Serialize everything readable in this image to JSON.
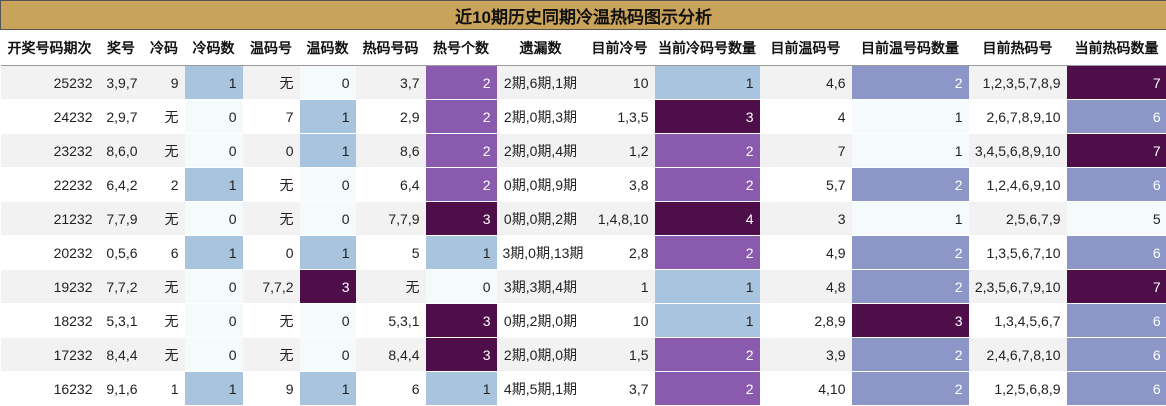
{
  "title": "近10期历史同期冷温热码图示分析",
  "headers": [
    "开奖号码期次",
    "奖号",
    "冷码",
    "冷码数",
    "温码号",
    "温码数",
    "热码号码",
    "热号个数",
    "遗漏数",
    "目前冷号",
    "当前冷码号数量",
    "目前温码号",
    "目前温号码数量",
    "目前热码号",
    "当前热码数量"
  ],
  "rows": [
    [
      "25232",
      "3,9,7",
      "9",
      "1",
      "无",
      "0",
      "3,7",
      "2",
      "2期,6期,1期",
      "10",
      "1",
      "4,6",
      "2",
      "1,2,3,5,7,8,9",
      "7"
    ],
    [
      "24232",
      "2,9,7",
      "无",
      "0",
      "7",
      "1",
      "2,9",
      "2",
      "2期,0期,3期",
      "1,3,5",
      "3",
      "4",
      "1",
      "2,6,7,8,9,10",
      "6"
    ],
    [
      "23232",
      "8,6,0",
      "无",
      "0",
      "0",
      "1",
      "8,6",
      "2",
      "2期,0期,4期",
      "1,2",
      "2",
      "7",
      "1",
      "3,4,5,6,8,9,10",
      "7"
    ],
    [
      "22232",
      "6,4,2",
      "2",
      "1",
      "无",
      "0",
      "6,4",
      "2",
      "0期,0期,9期",
      "3,8",
      "2",
      "5,7",
      "2",
      "1,2,4,6,9,10",
      "6"
    ],
    [
      "21232",
      "7,7,9",
      "无",
      "0",
      "无",
      "0",
      "7,7,9",
      "3",
      "0期,0期,2期",
      "1,4,8,10",
      "4",
      "3",
      "1",
      "2,5,6,7,9",
      "5"
    ],
    [
      "20232",
      "0,5,6",
      "6",
      "1",
      "0",
      "1",
      "5",
      "1",
      "3期,0期,13期",
      "2,8",
      "2",
      "4,9",
      "2",
      "1,3,5,6,7,10",
      "6"
    ],
    [
      "19232",
      "7,7,2",
      "无",
      "0",
      "7,7,2",
      "3",
      "无",
      "0",
      "3期,3期,4期",
      "1",
      "1",
      "4,8",
      "2",
      "2,3,5,6,7,9,10",
      "7"
    ],
    [
      "18232",
      "5,3,1",
      "无",
      "0",
      "无",
      "0",
      "5,3,1",
      "3",
      "0期,2期,0期",
      "10",
      "1",
      "2,8,9",
      "3",
      "1,3,4,5,6,7",
      "6"
    ],
    [
      "17232",
      "8,4,4",
      "无",
      "0",
      "无",
      "0",
      "8,4,4",
      "3",
      "2期,0期,0期",
      "1,5",
      "2",
      "3,9",
      "2",
      "2,4,6,7,8,10",
      "6"
    ],
    [
      "16232",
      "9,1,6",
      "1",
      "1",
      "9",
      "1",
      "6",
      "1",
      "4期,5期,1期",
      "3,7",
      "2",
      "4,10",
      "2",
      "1,2,5,6,8,9",
      "6"
    ]
  ],
  "colors": {
    "title_bg": "#c9a35a",
    "level_0": "#f5fbfd",
    "level_1": "#a9c4de",
    "level_2": "#8a5aae",
    "level_3_or_more": "#4e0e4a",
    "warm_count_highlight": "#8c97c7",
    "hot_count_6": "#8c97c7",
    "hot_count_7": "#4e0e4a",
    "hot_count_5": "#f5fbfd"
  }
}
